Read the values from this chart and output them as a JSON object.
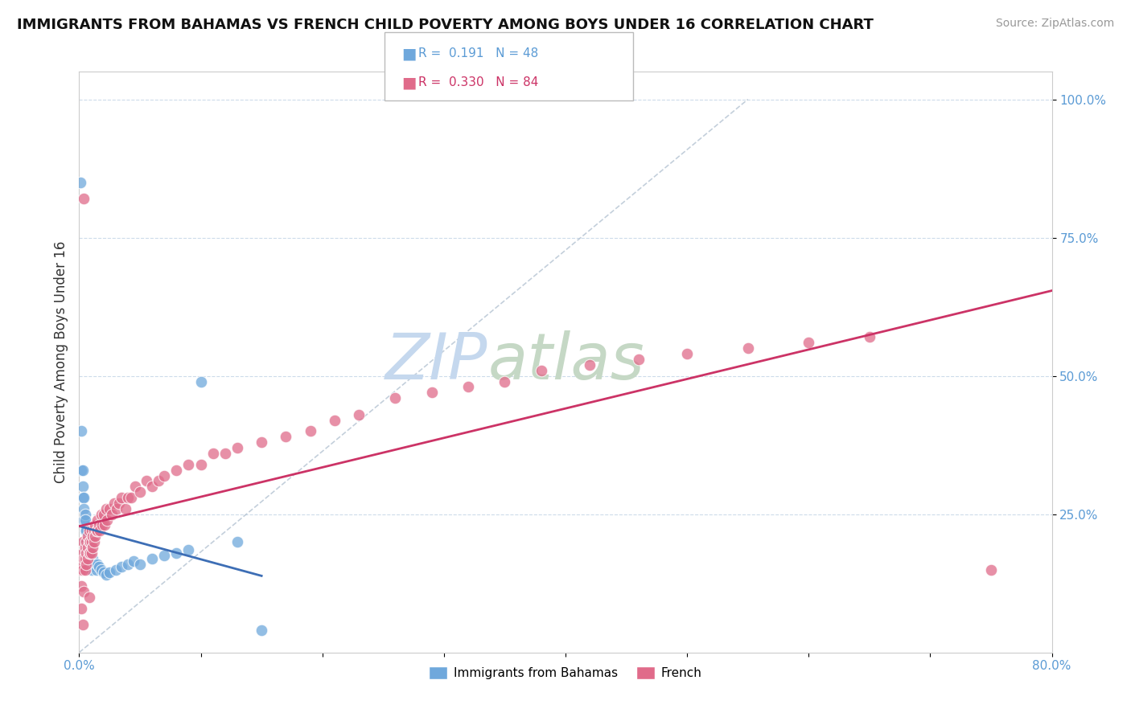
{
  "title": "IMMIGRANTS FROM BAHAMAS VS FRENCH CHILD POVERTY AMONG BOYS UNDER 16 CORRELATION CHART",
  "source": "Source: ZipAtlas.com",
  "ylabel": "Child Poverty Among Boys Under 16",
  "xlim": [
    0.0,
    0.8
  ],
  "ylim": [
    0.0,
    1.05
  ],
  "yticks": [
    0.25,
    0.5,
    0.75,
    1.0
  ],
  "ytick_labels": [
    "25.0%",
    "50.0%",
    "75.0%",
    "100.0%"
  ],
  "xticks": [
    0.0,
    0.1,
    0.2,
    0.3,
    0.4,
    0.5,
    0.6,
    0.7,
    0.8
  ],
  "xtick_labels": [
    "0.0%",
    "",
    "",
    "",
    "",
    "",
    "",
    "",
    "80.0%"
  ],
  "r_bahamas": 0.191,
  "n_bahamas": 48,
  "r_french": 0.33,
  "n_french": 84,
  "color_bahamas": "#6fa8dc",
  "color_french": "#e06b8a",
  "color_bahamas_line": "#3d6eb5",
  "color_french_line": "#cc3366",
  "watermark_zip": "ZIP",
  "watermark_atlas": "atlas",
  "watermark_color_zip": "#c5d8ee",
  "watermark_color_atlas": "#c5d8c5",
  "legend_label_bahamas": "Immigrants from Bahamas",
  "legend_label_french": "French",
  "scatter_bahamas_x": [
    0.001,
    0.002,
    0.002,
    0.003,
    0.003,
    0.003,
    0.004,
    0.004,
    0.004,
    0.005,
    0.005,
    0.005,
    0.005,
    0.006,
    0.006,
    0.006,
    0.006,
    0.007,
    0.007,
    0.007,
    0.008,
    0.008,
    0.009,
    0.009,
    0.01,
    0.01,
    0.011,
    0.012,
    0.013,
    0.014,
    0.015,
    0.016,
    0.018,
    0.02,
    0.022,
    0.025,
    0.03,
    0.035,
    0.04,
    0.045,
    0.05,
    0.06,
    0.07,
    0.08,
    0.09,
    0.1,
    0.13,
    0.15
  ],
  "scatter_bahamas_y": [
    0.85,
    0.4,
    0.33,
    0.33,
    0.3,
    0.28,
    0.28,
    0.26,
    0.24,
    0.25,
    0.24,
    0.22,
    0.2,
    0.22,
    0.2,
    0.19,
    0.18,
    0.19,
    0.18,
    0.16,
    0.18,
    0.17,
    0.17,
    0.16,
    0.16,
    0.15,
    0.17,
    0.16,
    0.155,
    0.15,
    0.16,
    0.155,
    0.15,
    0.145,
    0.14,
    0.145,
    0.15,
    0.155,
    0.16,
    0.165,
    0.16,
    0.17,
    0.175,
    0.18,
    0.185,
    0.49,
    0.2,
    0.04
  ],
  "scatter_french_x": [
    0.001,
    0.002,
    0.002,
    0.003,
    0.003,
    0.003,
    0.004,
    0.004,
    0.005,
    0.005,
    0.005,
    0.006,
    0.006,
    0.006,
    0.007,
    0.007,
    0.007,
    0.008,
    0.008,
    0.008,
    0.009,
    0.009,
    0.01,
    0.01,
    0.01,
    0.011,
    0.011,
    0.012,
    0.012,
    0.013,
    0.013,
    0.014,
    0.015,
    0.015,
    0.016,
    0.017,
    0.018,
    0.019,
    0.02,
    0.021,
    0.022,
    0.023,
    0.025,
    0.027,
    0.029,
    0.031,
    0.033,
    0.035,
    0.038,
    0.04,
    0.043,
    0.046,
    0.05,
    0.055,
    0.06,
    0.065,
    0.07,
    0.08,
    0.09,
    0.1,
    0.11,
    0.12,
    0.13,
    0.15,
    0.17,
    0.19,
    0.21,
    0.23,
    0.26,
    0.29,
    0.32,
    0.35,
    0.38,
    0.42,
    0.46,
    0.5,
    0.55,
    0.6,
    0.65,
    0.75,
    0.002,
    0.003,
    0.004,
    0.008
  ],
  "scatter_french_y": [
    0.15,
    0.16,
    0.12,
    0.2,
    0.18,
    0.15,
    0.17,
    0.82,
    0.19,
    0.17,
    0.15,
    0.2,
    0.18,
    0.16,
    0.21,
    0.19,
    0.17,
    0.22,
    0.2,
    0.18,
    0.2,
    0.18,
    0.22,
    0.2,
    0.18,
    0.21,
    0.19,
    0.22,
    0.2,
    0.23,
    0.21,
    0.22,
    0.24,
    0.22,
    0.23,
    0.22,
    0.25,
    0.23,
    0.25,
    0.23,
    0.26,
    0.24,
    0.26,
    0.25,
    0.27,
    0.26,
    0.27,
    0.28,
    0.26,
    0.28,
    0.28,
    0.3,
    0.29,
    0.31,
    0.3,
    0.31,
    0.32,
    0.33,
    0.34,
    0.34,
    0.36,
    0.36,
    0.37,
    0.38,
    0.39,
    0.4,
    0.42,
    0.43,
    0.46,
    0.47,
    0.48,
    0.49,
    0.51,
    0.52,
    0.53,
    0.54,
    0.55,
    0.56,
    0.57,
    0.15,
    0.08,
    0.05,
    0.11,
    0.1
  ]
}
